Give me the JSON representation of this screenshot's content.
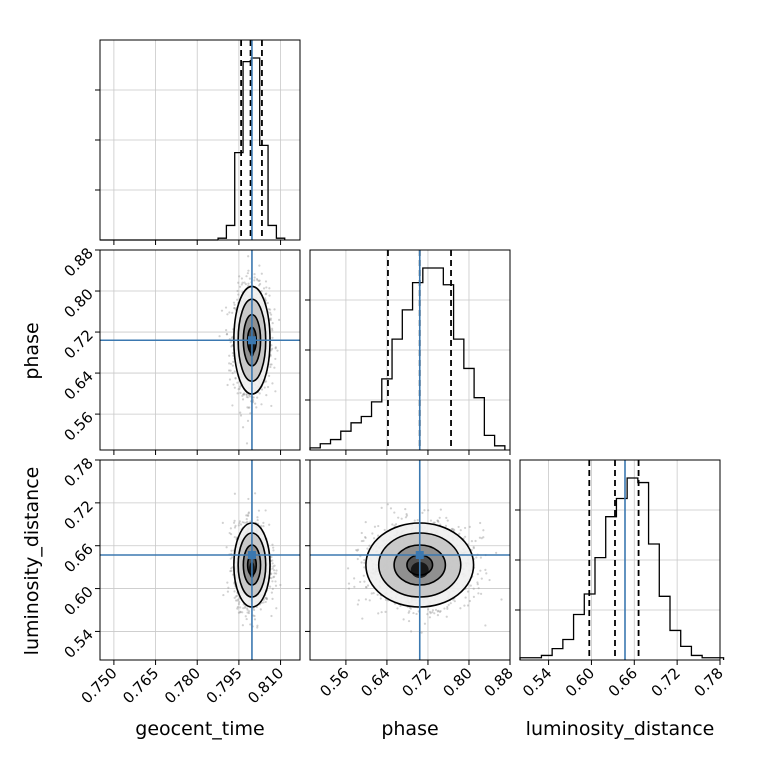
{
  "colors": {
    "truth": "#3b78b0",
    "hist": "#000000",
    "grid": "#c8c8c8",
    "scatter": "#9a9a9a"
  },
  "chart_data": [
    {
      "type": "histogram",
      "param": "geocent_time",
      "xlim": [
        0.745,
        0.817
      ],
      "bins": [
        0.7875,
        0.7905,
        0.7935,
        0.7965,
        0.7995,
        0.8025,
        0.8055,
        0.8085,
        0.8115
      ],
      "densities": [
        0.01,
        0.08,
        0.48,
        0.98,
        1.0,
        0.52,
        0.08,
        0.01
      ],
      "quantiles": [
        0.7958,
        0.7992,
        0.8033
      ],
      "truth": 0.7997,
      "xticks": [
        0.75,
        0.765,
        0.78,
        0.795,
        0.81
      ],
      "grid": true
    },
    {
      "type": "histogram",
      "param": "phase",
      "xlim": [
        0.49,
        0.88
      ],
      "bins": [
        0.49,
        0.51,
        0.53,
        0.55,
        0.57,
        0.59,
        0.61,
        0.63,
        0.65,
        0.67,
        0.69,
        0.71,
        0.73,
        0.75,
        0.77,
        0.79,
        0.81,
        0.83,
        0.85,
        0.87
      ],
      "densities": [
        0.01,
        0.03,
        0.05,
        0.09,
        0.13,
        0.16,
        0.23,
        0.34,
        0.53,
        0.67,
        0.8,
        0.87,
        0.87,
        0.79,
        0.53,
        0.39,
        0.25,
        0.07,
        0.02
      ],
      "quantiles": [
        0.642,
        0.704,
        0.765
      ],
      "truth": 0.704,
      "xticks": [
        0.56,
        0.64,
        0.72,
        0.8,
        0.88
      ],
      "grid": true
    },
    {
      "type": "histogram",
      "param": "luminosity_distance",
      "xlim": [
        0.5,
        0.78
      ],
      "bins": [
        0.5,
        0.515,
        0.53,
        0.545,
        0.56,
        0.575,
        0.59,
        0.605,
        0.62,
        0.635,
        0.65,
        0.665,
        0.68,
        0.695,
        0.71,
        0.725,
        0.74,
        0.755,
        0.77,
        0.785
      ],
      "densities": [
        0.01,
        0.01,
        0.02,
        0.05,
        0.09,
        0.2,
        0.29,
        0.45,
        0.63,
        0.71,
        0.8,
        0.78,
        0.51,
        0.28,
        0.13,
        0.06,
        0.02,
        0.01,
        0.01
      ],
      "quantiles": [
        0.597,
        0.633,
        0.666
      ],
      "truth": 0.647,
      "xticks": [
        0.54,
        0.6,
        0.66,
        0.72,
        0.78
      ],
      "grid": true
    },
    {
      "type": "scatter-contour",
      "x": "geocent_time",
      "y": "phase",
      "xlim": [
        0.745,
        0.817
      ],
      "ylim": [
        0.49,
        0.88
      ],
      "center": [
        0.7997,
        0.704
      ],
      "spread": [
        0.0031,
        0.05
      ],
      "contour_levels": [
        0.5,
        1.0,
        1.6,
        2.1
      ],
      "truth": [
        0.7997,
        0.704
      ],
      "yticks": [
        0.56,
        0.64,
        0.72,
        0.8,
        0.88
      ]
    },
    {
      "type": "scatter-contour",
      "x": "geocent_time",
      "y": "luminosity_distance",
      "xlim": [
        0.745,
        0.817
      ],
      "ylim": [
        0.5,
        0.78
      ],
      "center": [
        0.7997,
        0.633
      ],
      "spread": [
        0.0031,
        0.028
      ],
      "contour_levels": [
        0.5,
        1.0,
        1.6,
        2.1
      ],
      "truth": [
        0.7997,
        0.647
      ],
      "yticks": [
        0.54,
        0.6,
        0.66,
        0.72,
        0.78
      ]
    },
    {
      "type": "scatter-contour",
      "x": "phase",
      "y": "luminosity_distance",
      "xlim": [
        0.49,
        0.88
      ],
      "ylim": [
        0.5,
        0.78
      ],
      "center": [
        0.704,
        0.633
      ],
      "spread": [
        0.05,
        0.028
      ],
      "contour_levels": [
        0.5,
        1.0,
        1.6,
        2.1
      ],
      "truth": [
        0.704,
        0.647
      ],
      "xticks": [
        0.56,
        0.64,
        0.72,
        0.8,
        0.88
      ]
    }
  ],
  "labels": {
    "x": [
      "geocent_time",
      "phase",
      "luminosity_distance"
    ],
    "y": [
      "phase",
      "luminosity_distance"
    ]
  },
  "tick_labels": {
    "geocent_time": [
      "0.750",
      "0.765",
      "0.780",
      "0.795",
      "0.810"
    ],
    "phase": [
      "0.56",
      "0.64",
      "0.72",
      "0.80",
      "0.88"
    ],
    "luminosity_distance": [
      "0.54",
      "0.60",
      "0.66",
      "0.72",
      "0.78"
    ]
  }
}
